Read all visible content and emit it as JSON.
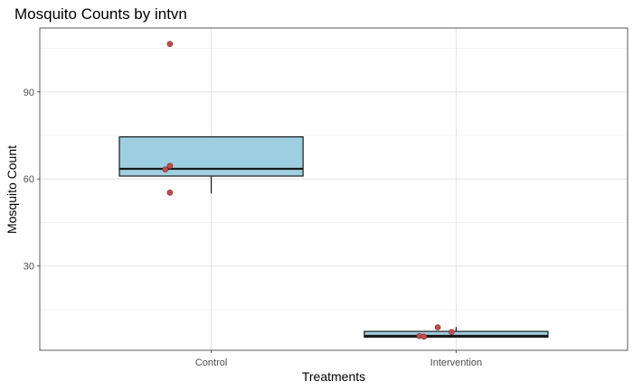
{
  "chart_data": {
    "type": "boxplot",
    "title": "Mosquito Counts by intvn",
    "xlabel": "Treatments",
    "ylabel": "Mosquito Count",
    "categories": [
      "Control",
      "Intervention"
    ],
    "ylim": [
      1,
      112
    ],
    "yticks": [
      30,
      60,
      90
    ],
    "grid": true,
    "boxes": [
      {
        "category": "Control",
        "q1": 61,
        "median": 63.5,
        "q3": 74.5,
        "whisker_low": 55,
        "whisker_high": 74.5
      },
      {
        "category": "Intervention",
        "q1": 5.5,
        "median": 6,
        "q3": 7.5,
        "whisker_low": 5.5,
        "whisker_high": 9
      }
    ],
    "points": [
      {
        "category": "Control",
        "jitter": -0.45,
        "y": 106.5
      },
      {
        "category": "Control",
        "jitter": -0.45,
        "y": 64.5
      },
      {
        "category": "Control",
        "jitter": -0.5,
        "y": 63.3
      },
      {
        "category": "Control",
        "jitter": -0.45,
        "y": 55.3
      },
      {
        "category": "Intervention",
        "jitter": -0.2,
        "y": 8.9
      },
      {
        "category": "Intervention",
        "jitter": -0.05,
        "y": 7.3
      },
      {
        "category": "Intervention",
        "jitter": -0.4,
        "y": 5.9
      },
      {
        "category": "Intervention",
        "jitter": -0.35,
        "y": 5.7
      }
    ],
    "colors": {
      "box_fill": "#9ecfe1",
      "box_stroke": "#1a1a1a",
      "point_fill": "#c0504d",
      "point_stroke": "#7a2b2a",
      "grid_major": "#e3e3e3",
      "grid_minor": "#f1f1f1",
      "panel_border": "#333333"
    }
  }
}
